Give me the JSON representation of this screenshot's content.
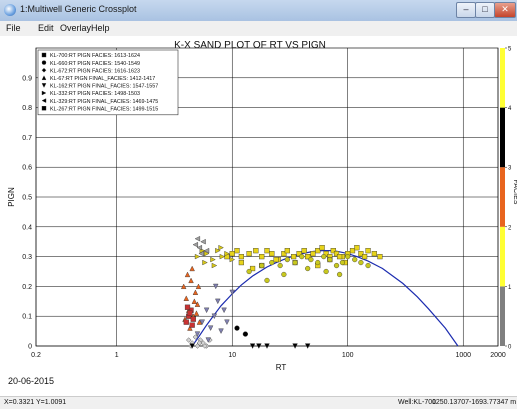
{
  "window": {
    "title": "1:Multiwell Generic Crossplot",
    "minimize": "–",
    "maximize": "□",
    "close": "✕"
  },
  "menu": [
    "File",
    "Edit",
    "Overlay",
    "Help"
  ],
  "chart_data": {
    "type": "scatter",
    "title": "K-X SAND PLOT OF RT VS PIGN",
    "xlabel": "RT",
    "ylabel": "PIGN",
    "xscale": "log",
    "xlim": [
      0.2,
      2000
    ],
    "ylim": [
      0,
      1
    ],
    "xticks": [
      "0.2",
      "1",
      "10",
      "100",
      "1000",
      "2000"
    ],
    "yticks": [
      "0",
      "0.1",
      "0.2",
      "0.3",
      "0.4",
      "0.5",
      "0.6",
      "0.7",
      "0.8",
      "0.9"
    ],
    "grid": true,
    "legend_position": "top-left",
    "legend": [
      "KL-700:RT PIGN FACIES: 1613-1624",
      "KL-660:RT PIGN FACIES: 1540-1549",
      "KL-672:RT PIGN FACIES: 1616-1623",
      "KL-67:RT PIGN FINAL_FACIES: 1412-1417",
      "KL-162:RT PIGN FINAL_FACIES: 1547-1557",
      "KL-332:RT PIGN FACIES: 1498-1503",
      "KL-329:RT PIGN FINAL_FACIES: 1469-1475",
      "KL-267:RT PIGN FINAL_FACIES: 1499-1515"
    ],
    "legend_markers": [
      "square",
      "circle",
      "diamond",
      "triangle-up",
      "triangle-down",
      "triangle-right",
      "triangle-left",
      "square"
    ],
    "colorbar": {
      "label": "FACIES",
      "ticks": [
        "0",
        "1",
        "2",
        "3",
        "4",
        "5"
      ],
      "segments": [
        {
          "from": 0,
          "to": 1,
          "color": "#808080"
        },
        {
          "from": 1,
          "to": 2,
          "color": "#ffff33"
        },
        {
          "from": 2,
          "to": 3,
          "color": "#e8641e"
        },
        {
          "from": 3,
          "to": 4,
          "color": "#000000"
        },
        {
          "from": 4,
          "to": 5,
          "color": "#ffff33"
        }
      ]
    },
    "trend_line": {
      "color": "#1c2cb0",
      "x": [
        4.5,
        5,
        6,
        7,
        8,
        10,
        12,
        15,
        20,
        25,
        30,
        40,
        50,
        60,
        70,
        80,
        100,
        120,
        150,
        200,
        300,
        400,
        500,
        700,
        900
      ],
      "y": [
        0.0,
        0.025,
        0.07,
        0.105,
        0.135,
        0.175,
        0.205,
        0.235,
        0.265,
        0.283,
        0.295,
        0.31,
        0.317,
        0.32,
        0.32,
        0.318,
        0.31,
        0.3,
        0.285,
        0.26,
        0.21,
        0.165,
        0.125,
        0.06,
        0.0
      ]
    },
    "series": [
      {
        "name": "KL-700:RT PIGN FACIES: 1613-1624",
        "marker": "square",
        "color": "#e8d41a",
        "x": [
          9,
          10,
          11,
          12,
          14,
          16,
          18,
          20,
          22,
          25,
          28,
          30,
          34,
          38,
          42,
          46,
          50,
          55,
          60,
          65,
          70,
          75,
          80,
          90,
          100,
          110,
          120,
          130,
          140,
          150,
          170,
          190,
          12,
          15,
          18,
          24,
          35,
          45,
          55,
          70,
          85,
          95
        ],
        "y": [
          0.3,
          0.31,
          0.32,
          0.3,
          0.31,
          0.32,
          0.3,
          0.32,
          0.31,
          0.29,
          0.31,
          0.32,
          0.3,
          0.31,
          0.32,
          0.3,
          0.31,
          0.32,
          0.33,
          0.31,
          0.3,
          0.32,
          0.31,
          0.3,
          0.31,
          0.32,
          0.33,
          0.31,
          0.3,
          0.32,
          0.31,
          0.3,
          0.28,
          0.26,
          0.27,
          0.29,
          0.28,
          0.3,
          0.27,
          0.29,
          0.3,
          0.28
        ]
      },
      {
        "name": "KL-660:RT PIGN FACIES: 1540-1549",
        "marker": "circle",
        "color": "#c8c81e",
        "x": [
          14,
          18,
          22,
          26,
          30,
          35,
          40,
          48,
          55,
          62,
          70,
          80,
          90,
          100,
          115,
          130,
          150,
          20,
          28,
          45,
          65,
          85
        ],
        "y": [
          0.25,
          0.27,
          0.28,
          0.27,
          0.29,
          0.28,
          0.3,
          0.29,
          0.28,
          0.3,
          0.29,
          0.27,
          0.28,
          0.3,
          0.29,
          0.28,
          0.27,
          0.22,
          0.24,
          0.26,
          0.25,
          0.24
        ]
      },
      {
        "name": "KL-672:RT PIGN FACIES: 1616-1623",
        "marker": "diamond",
        "color": "#d2d2d2",
        "x": [
          4.2,
          4.5,
          4.8,
          5,
          5.3,
          5.6,
          6,
          6.4,
          4.4,
          5.2,
          5.8
        ],
        "y": [
          0.02,
          0.01,
          0.03,
          0.0,
          0.02,
          0.01,
          0.0,
          0.02,
          0.0,
          0.01,
          0.0
        ]
      },
      {
        "name": "KL-67:RT PIGN FINAL_FACIES: 1412-1417",
        "marker": "triangle-up",
        "color": "#e8641e",
        "x": [
          3.8,
          4,
          4.2,
          4.4,
          4.6,
          4.8,
          5,
          5.2,
          4.1,
          4.3,
          4.7,
          4.9,
          5.1,
          3.9,
          4.5
        ],
        "y": [
          0.2,
          0.16,
          0.12,
          0.22,
          0.1,
          0.18,
          0.14,
          0.08,
          0.24,
          0.06,
          0.15,
          0.11,
          0.2,
          0.09,
          0.26
        ]
      },
      {
        "name": "KL-162:RT PIGN FINAL_FACIES: 1547-1557",
        "marker": "triangle-down",
        "color": "#8080b0",
        "x": [
          5,
          5.5,
          6,
          6.5,
          7,
          7.5,
          8,
          8.5,
          9,
          10,
          6.2,
          7.2
        ],
        "y": [
          0.04,
          0.08,
          0.12,
          0.06,
          0.1,
          0.15,
          0.05,
          0.12,
          0.08,
          0.18,
          0.02,
          0.2
        ]
      },
      {
        "name": "KL-332:RT PIGN FACIES: 1498-1503",
        "marker": "triangle-right",
        "color": "#d8c818",
        "x": [
          5,
          5.5,
          6,
          6.8,
          7.5,
          8.2,
          9,
          10,
          5.8,
          7,
          8
        ],
        "y": [
          0.3,
          0.32,
          0.31,
          0.29,
          0.32,
          0.3,
          0.31,
          0.29,
          0.28,
          0.27,
          0.33
        ]
      },
      {
        "name": "KL-329:RT PIGN FINAL_FACIES: 1469-1475",
        "marker": "triangle-left",
        "color": "#a0a0a0",
        "x": [
          4.8,
          5.2,
          5.6,
          6,
          5,
          5.4
        ],
        "y": [
          0.34,
          0.33,
          0.35,
          0.32,
          0.36,
          0.31
        ]
      },
      {
        "name": "KL-267:RT PIGN FINAL_FACIES: 1499-1515",
        "marker": "square",
        "color": "#c83232",
        "x": [
          4,
          4.2,
          4.4,
          4.6,
          4.3,
          4.1,
          4.5
        ],
        "y": [
          0.08,
          0.1,
          0.12,
          0.09,
          0.11,
          0.13,
          0.07
        ]
      },
      {
        "name": "black",
        "marker": "circle",
        "color": "#000000",
        "x": [
          11,
          13
        ],
        "y": [
          0.06,
          0.04
        ]
      },
      {
        "name": "black-tri",
        "marker": "triangle-down",
        "color": "#000000",
        "x": [
          4.5,
          15,
          17,
          20,
          35,
          45
        ],
        "y": [
          0.0,
          0.0,
          0.0,
          0.0,
          0.0,
          0.0
        ]
      }
    ]
  },
  "footer": {
    "date": "20-06-2015",
    "cursor": "X=0.3321  Y=1.0091",
    "well": "Well:KL-700",
    "depth": "1250.13707-1693.77347 m"
  }
}
